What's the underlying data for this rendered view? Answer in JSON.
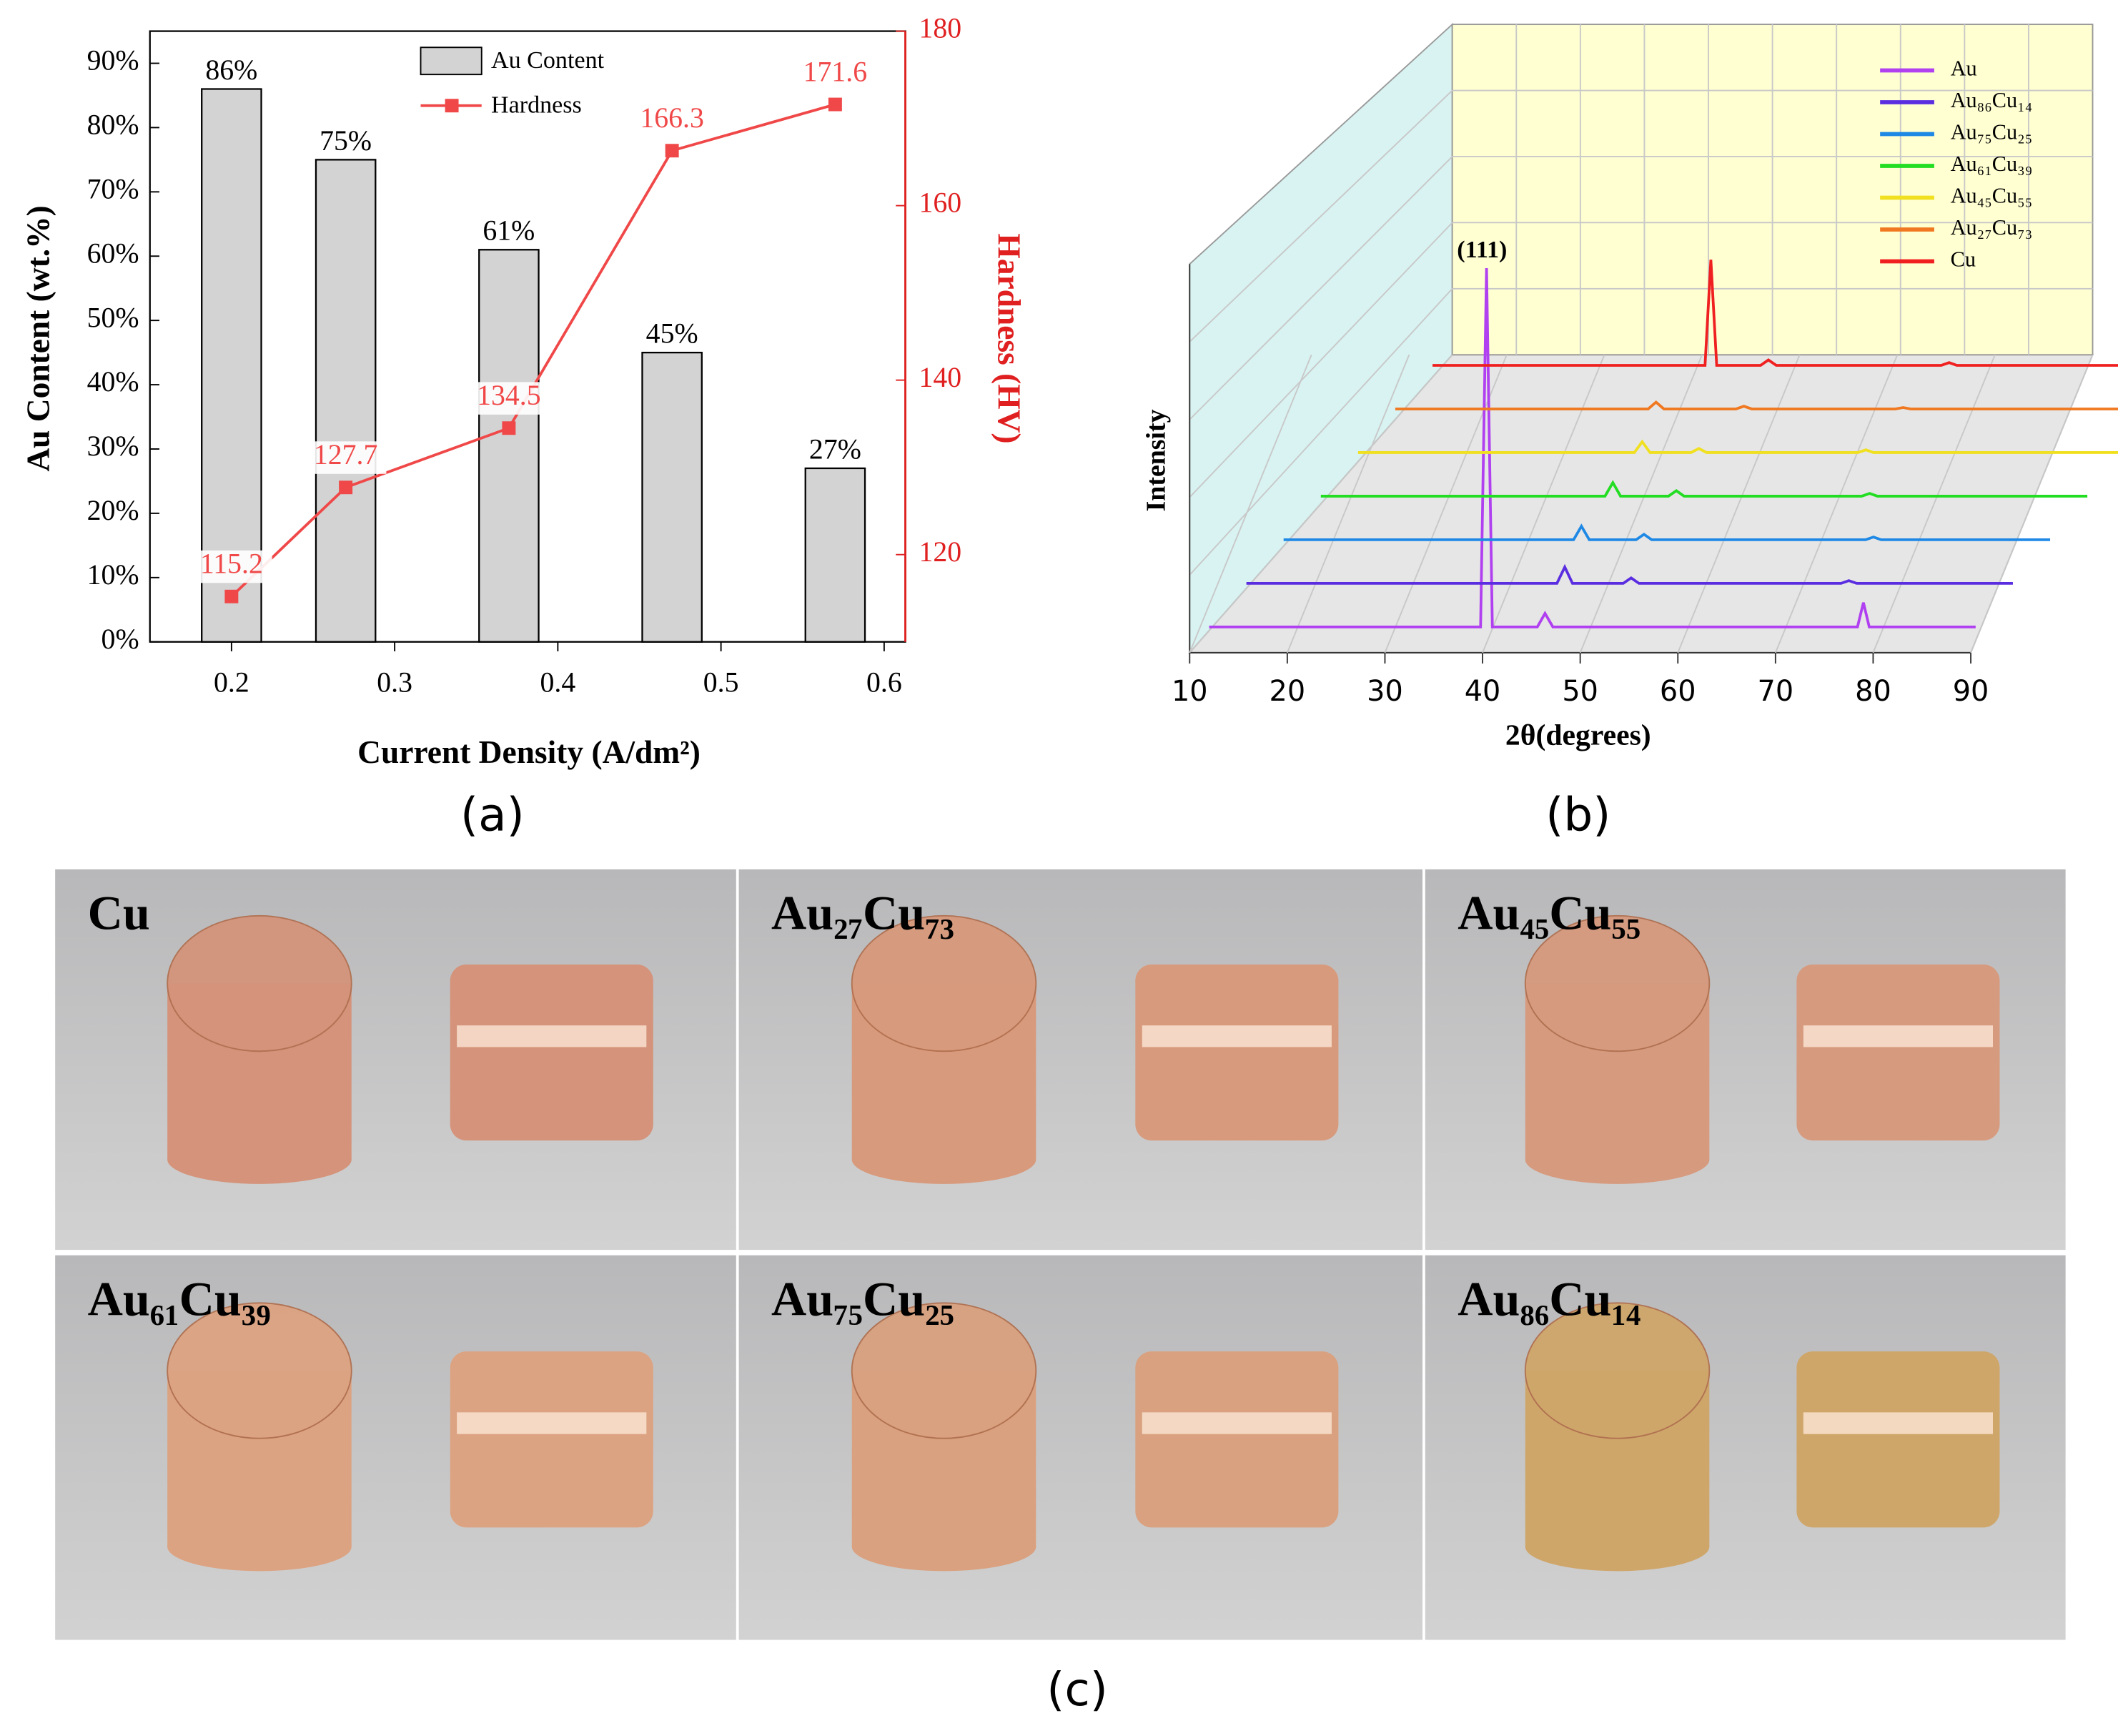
{
  "panel_labels": [
    "(a)",
    "(b)",
    "(c)"
  ],
  "chart_data": [
    {
      "type": "bar",
      "xlabel": "Current Density (A/dm²)",
      "ylabel": "Au Content (wt.%)",
      "y2label": "Hardness (HV)",
      "x": [
        0.2,
        0.27,
        0.37,
        0.47,
        0.57
      ],
      "series": [
        {
          "name": "Au Content",
          "type": "bar",
          "color": "#d3d3d3",
          "values": [
            86,
            75,
            61,
            45,
            27
          ],
          "value_labels": [
            "86%",
            "75%",
            "61%",
            "45%",
            "27%"
          ]
        },
        {
          "name": "Hardness",
          "type": "line",
          "axis": "y2",
          "color": "#f04848",
          "values": [
            115.2,
            127.7,
            134.5,
            166.3,
            171.6
          ]
        }
      ],
      "xlim": [
        0.15,
        0.613
      ],
      "xticks": [
        0.2,
        0.3,
        0.4,
        0.5,
        0.6
      ],
      "ylim": [
        0,
        95
      ],
      "yticks": [
        {
          "value": 0,
          "label": "0%"
        },
        {
          "value": 10,
          "label": "10%"
        },
        {
          "value": 20,
          "label": "20%"
        },
        {
          "value": 30,
          "label": "30%"
        },
        {
          "value": 40,
          "label": "40%"
        },
        {
          "value": 50,
          "label": "50%"
        },
        {
          "value": 60,
          "label": "60%"
        },
        {
          "value": 70,
          "label": "70%"
        },
        {
          "value": 80,
          "label": "80%"
        },
        {
          "value": 90,
          "label": "90%"
        }
      ],
      "y2lim": [
        110,
        180
      ],
      "y2ticks": [
        120,
        140,
        160,
        180
      ]
    },
    {
      "type": "waterfall",
      "xlabel": "2θ(degrees)",
      "ylabel": "Intensity",
      "annotation": "(111)",
      "xlim": [
        10,
        90
      ],
      "xticks": [
        10,
        20,
        30,
        40,
        50,
        60,
        70,
        80,
        90
      ],
      "ylim": [
        0,
        300
      ],
      "series": [
        {
          "name": "Au",
          "color": "#b040f0",
          "x": [
            12,
            39.8,
            40.4,
            41.0,
            45.6,
            46.4,
            47.2,
            78.4,
            79,
            79.6,
            90.5
          ],
          "values": [
            0,
            0,
            265,
            0,
            0,
            10,
            0,
            0,
            18,
            0,
            0
          ]
        },
        {
          "name": "Au₈₆Cu₁₄",
          "color": "#5a2ee0",
          "x": [
            12,
            43.8,
            44.6,
            45.4,
            50.6,
            51.4,
            52.2,
            72.9,
            73.7,
            74.5,
            90.5
          ],
          "values": [
            0,
            0,
            12,
            0,
            0,
            4,
            0,
            0,
            2,
            0,
            0
          ]
        },
        {
          "name": "Au₇₅Cu₂₅",
          "color": "#1e88e5",
          "x": [
            12,
            41.7,
            42.5,
            43.3,
            48.1,
            48.9,
            49.7,
            71.6,
            72.4,
            73.2,
            90.5
          ],
          "values": [
            0,
            0,
            10,
            0,
            0,
            4,
            0,
            0,
            2,
            0,
            0
          ]
        },
        {
          "name": "Au₆₁Cu₃₉",
          "color": "#22dd22",
          "x": [
            12,
            41.1,
            41.9,
            42.7,
            47.6,
            48.4,
            49.2,
            67.4,
            68.2,
            69.0,
            90.5
          ],
          "values": [
            0,
            0,
            10,
            0,
            0,
            4,
            0,
            0,
            2,
            0,
            0
          ]
        },
        {
          "name": "Au₄₅Cu₅₅",
          "color": "#f0e020",
          "x": [
            12,
            40.3,
            41.1,
            41.9,
            46.1,
            46.9,
            47.7,
            63.2,
            64,
            64.8,
            90.5
          ],
          "values": [
            0,
            0,
            8,
            0,
            0,
            3,
            0,
            0,
            2,
            0,
            0
          ]
        },
        {
          "name": "Au₂₇Cu₇₃",
          "color": "#f07820",
          "x": [
            12,
            37.9,
            38.7,
            39.5,
            46.9,
            47.7,
            48.5,
            63.2,
            64,
            64.8,
            90.5
          ],
          "values": [
            0,
            0,
            5,
            0,
            0,
            2,
            0,
            0,
            1,
            0,
            0
          ]
        },
        {
          "name": "Cu",
          "color": "#f02020",
          "x": [
            12,
            39.9,
            40.5,
            41.1,
            45.6,
            46.4,
            47.2,
            64.1,
            64.9,
            65.7,
            90.5
          ],
          "values": [
            0,
            0,
            78,
            0,
            0,
            4,
            0,
            0,
            2,
            0,
            0
          ]
        }
      ]
    }
  ],
  "photos": {
    "labels": [
      "Cu",
      "Au₂₇Cu₇₃",
      "Au₄₅Cu₅₅",
      "Au₆₁Cu₃₉",
      "Au₇₅Cu₂₅",
      "Au₈₆Cu₁₄"
    ]
  }
}
